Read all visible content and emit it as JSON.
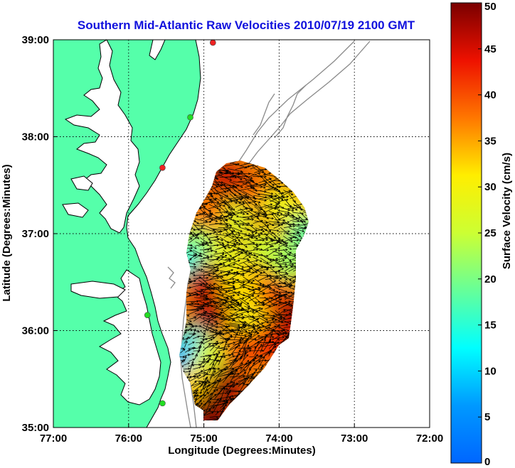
{
  "figure": {
    "title": "Southern Mid-Atlantic Raw Velocities 2010/07/19 2100 GMT",
    "title_color": "#1111dd"
  },
  "axes": {
    "xlabel": "Longitude (Degrees:Minutes)",
    "ylabel": "Latitude (Degrees:Minutes)",
    "lon_range": [
      -77,
      -72
    ],
    "lat_range": [
      35,
      39
    ],
    "x_ticks": [
      {
        "value": -77,
        "label": "77:00"
      },
      {
        "value": -76,
        "label": "76:00"
      },
      {
        "value": -75,
        "label": "75:00"
      },
      {
        "value": -74,
        "label": "74:00"
      },
      {
        "value": -73,
        "label": "73:00"
      },
      {
        "value": -72,
        "label": "72:00"
      }
    ],
    "y_ticks": [
      {
        "value": 35,
        "label": "35:00"
      },
      {
        "value": 36,
        "label": "36:00"
      },
      {
        "value": 37,
        "label": "37:00"
      },
      {
        "value": 38,
        "label": "38:00"
      },
      {
        "value": 39,
        "label": "39:00"
      }
    ],
    "grid": true,
    "grid_style": "dotted"
  },
  "colorbar": {
    "label": "Surface Velocity (cm/s)",
    "range": [
      0,
      50
    ],
    "ticks": [
      {
        "value": 0,
        "label": "0"
      },
      {
        "value": 5,
        "label": "5"
      },
      {
        "value": 10,
        "label": "10"
      },
      {
        "value": 15,
        "label": "15"
      },
      {
        "value": 20,
        "label": "20"
      },
      {
        "value": 25,
        "label": "25"
      },
      {
        "value": 30,
        "label": "30"
      },
      {
        "value": 35,
        "label": "35"
      },
      {
        "value": 40,
        "label": "40"
      },
      {
        "value": 45,
        "label": "45"
      },
      {
        "value": 50,
        "label": "50"
      }
    ],
    "colormap": "jet"
  },
  "colors": {
    "land": "#55ffaa",
    "water": "#ffffff",
    "bathymetry": "#8a8a8a",
    "coastline": "#000000",
    "site_active": "#22dd22",
    "site_inactive": "#ee2222"
  },
  "sites": [
    {
      "name": "",
      "lon": -74.88,
      "lat": 38.97,
      "status": "inactive"
    },
    {
      "name": "",
      "lon": -75.18,
      "lat": 38.2,
      "status": "active"
    },
    {
      "name": "",
      "lon": -75.55,
      "lat": 37.68,
      "status": "inactive"
    },
    {
      "name": "",
      "lon": -75.75,
      "lat": 36.16,
      "status": "active"
    },
    {
      "name": "",
      "lon": -75.55,
      "lat": 35.25,
      "status": "active"
    }
  ],
  "chart_data": {
    "type": "heatmap",
    "title": "Southern Mid-Atlantic Raw Velocities 2010/07/19 2100 GMT",
    "xlabel": "Longitude (Degrees:Minutes)",
    "ylabel": "Latitude (Degrees:Minutes)",
    "xlim": [
      -77,
      -72
    ],
    "ylim": [
      35,
      39
    ],
    "variable": "Surface Velocity (cm/s)",
    "zlim": [
      0,
      50
    ],
    "regions": [
      {
        "lon": -74.7,
        "lat": 37.55,
        "speed": 46
      },
      {
        "lon": -74.3,
        "lat": 37.4,
        "speed": 40
      },
      {
        "lon": -74.0,
        "lat": 37.3,
        "speed": 28
      },
      {
        "lon": -73.8,
        "lat": 37.2,
        "speed": 30
      },
      {
        "lon": -73.65,
        "lat": 37.0,
        "speed": 18
      },
      {
        "lon": -74.6,
        "lat": 37.15,
        "speed": 26
      },
      {
        "lon": -74.95,
        "lat": 37.2,
        "speed": 38
      },
      {
        "lon": -75.1,
        "lat": 36.9,
        "speed": 22
      },
      {
        "lon": -75.25,
        "lat": 36.7,
        "speed": 14
      },
      {
        "lon": -74.7,
        "lat": 36.75,
        "speed": 28
      },
      {
        "lon": -74.2,
        "lat": 36.85,
        "speed": 25
      },
      {
        "lon": -73.85,
        "lat": 36.7,
        "speed": 22
      },
      {
        "lon": -75.0,
        "lat": 36.5,
        "speed": 46
      },
      {
        "lon": -74.5,
        "lat": 36.45,
        "speed": 32
      },
      {
        "lon": -74.05,
        "lat": 36.35,
        "speed": 40
      },
      {
        "lon": -73.85,
        "lat": 36.15,
        "speed": 48
      },
      {
        "lon": -74.9,
        "lat": 36.15,
        "speed": 47
      },
      {
        "lon": -74.4,
        "lat": 36.1,
        "speed": 30
      },
      {
        "lon": -75.2,
        "lat": 35.85,
        "speed": 12
      },
      {
        "lon": -75.3,
        "lat": 35.7,
        "speed": 8
      },
      {
        "lon": -74.9,
        "lat": 35.75,
        "speed": 26
      },
      {
        "lon": -74.5,
        "lat": 35.8,
        "speed": 40
      },
      {
        "lon": -74.1,
        "lat": 35.9,
        "speed": 44
      },
      {
        "lon": -75.1,
        "lat": 35.45,
        "speed": 32
      },
      {
        "lon": -74.7,
        "lat": 35.45,
        "speed": 48
      },
      {
        "lon": -74.9,
        "lat": 35.2,
        "speed": 49
      },
      {
        "lon": -74.95,
        "lat": 35.05,
        "speed": 50
      }
    ]
  }
}
